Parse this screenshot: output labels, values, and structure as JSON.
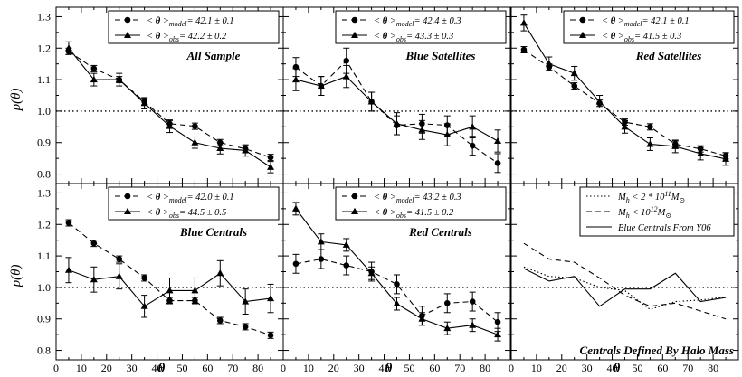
{
  "figure": {
    "xlabel": "θ",
    "ylabel": "p(θ)",
    "xticks": [
      "0",
      "10",
      "20",
      "30",
      "40",
      "50",
      "60",
      "70",
      "80"
    ],
    "yticks": [
      "0.8",
      "0.9",
      "1.0",
      "1.1",
      "1.2",
      "1.3"
    ]
  },
  "chart_data": [
    {
      "type": "line",
      "title": "All Sample",
      "xlim": [
        0,
        90
      ],
      "ylim": [
        0.77,
        1.33
      ],
      "reference_line": 1.0,
      "legend_position": "top-right",
      "x": [
        5,
        15,
        25,
        35,
        45,
        55,
        65,
        75,
        85
      ],
      "series": [
        {
          "name": "< θ >model = 42.1 ± 0.1",
          "label_sub": "model",
          "label_value": "= 42.1 ± 0.1",
          "style": "dashed",
          "marker": "circle",
          "values": [
            1.19,
            1.135,
            1.1,
            1.03,
            0.96,
            0.952,
            0.9,
            0.88,
            0.853
          ],
          "errors": [
            0.01,
            0.01,
            0.01,
            0.01,
            0.01,
            0.01,
            0.01,
            0.01,
            0.01
          ]
        },
        {
          "name": "< θ >obs = 42.2 ± 0.2",
          "label_sub": "obs",
          "label_value": "= 42.2 ± 0.2",
          "style": "solid",
          "marker": "triangle",
          "values": [
            1.2,
            1.1,
            1.1,
            1.025,
            0.952,
            0.9,
            0.882,
            0.875,
            0.822
          ],
          "errors": [
            0.02,
            0.02,
            0.02,
            0.018,
            0.02,
            0.018,
            0.018,
            0.018,
            0.018
          ]
        }
      ]
    },
    {
      "type": "line",
      "title": "Blue Satellites",
      "xlim": [
        0,
        90
      ],
      "ylim": [
        0.77,
        1.33
      ],
      "reference_line": 1.0,
      "legend_position": "top-right",
      "x": [
        5,
        15,
        25,
        35,
        45,
        55,
        65,
        75,
        85
      ],
      "series": [
        {
          "name": "< θ >model = 42.4 ± 0.3",
          "label_sub": "model",
          "label_value": "= 42.4 ± 0.3",
          "style": "dashed",
          "marker": "circle",
          "values": [
            1.14,
            1.08,
            1.16,
            1.03,
            0.955,
            0.96,
            0.955,
            0.89,
            0.835
          ],
          "errors": [
            0.03,
            0.03,
            0.04,
            0.03,
            0.03,
            0.03,
            0.03,
            0.03,
            0.03
          ]
        },
        {
          "name": "< θ >obs = 43.3 ± 0.3",
          "label_sub": "obs",
          "label_value": "= 43.3 ± 0.3",
          "style": "solid",
          "marker": "triangle",
          "values": [
            1.1,
            1.08,
            1.11,
            1.03,
            0.96,
            0.94,
            0.925,
            0.95,
            0.905
          ],
          "errors": [
            0.035,
            0.03,
            0.035,
            0.03,
            0.035,
            0.03,
            0.035,
            0.035,
            0.035
          ]
        }
      ]
    },
    {
      "type": "line",
      "title": "Red Satellites",
      "xlim": [
        0,
        90
      ],
      "ylim": [
        0.77,
        1.33
      ],
      "reference_line": 1.0,
      "legend_position": "top-right",
      "x": [
        5,
        15,
        25,
        35,
        45,
        55,
        65,
        75,
        85
      ],
      "series": [
        {
          "name": "< θ >model = 42.1 ± 0.1",
          "label_sub": "model",
          "label_value": "= 42.1 ± 0.1",
          "style": "dashed",
          "marker": "circle",
          "values": [
            1.195,
            1.14,
            1.08,
            1.025,
            0.965,
            0.95,
            0.895,
            0.88,
            0.858
          ],
          "errors": [
            0.01,
            0.01,
            0.01,
            0.01,
            0.01,
            0.01,
            0.01,
            0.01,
            0.01
          ]
        },
        {
          "name": "< θ >obs = 41.5 ± 0.3",
          "label_sub": "obs",
          "label_value": "= 41.5 ± 0.3",
          "style": "solid",
          "marker": "triangle",
          "values": [
            1.28,
            1.15,
            1.12,
            1.03,
            0.95,
            0.895,
            0.888,
            0.865,
            0.848
          ],
          "errors": [
            0.025,
            0.022,
            0.022,
            0.02,
            0.02,
            0.02,
            0.02,
            0.02,
            0.02
          ]
        }
      ]
    },
    {
      "type": "line",
      "title": "Blue Centrals",
      "xlim": [
        0,
        90
      ],
      "ylim": [
        0.77,
        1.33
      ],
      "reference_line": 1.0,
      "legend_position": "top-right",
      "x": [
        5,
        15,
        25,
        35,
        45,
        55,
        65,
        75,
        85
      ],
      "series": [
        {
          "name": "< θ >model = 42.0 ± 0.1",
          "label_sub": "model",
          "label_value": "= 42.0 ± 0.1",
          "style": "dashed",
          "marker": "circle",
          "values": [
            1.205,
            1.14,
            1.09,
            1.03,
            0.958,
            0.958,
            0.895,
            0.875,
            0.848
          ],
          "errors": [
            0.01,
            0.01,
            0.01,
            0.01,
            0.01,
            0.01,
            0.01,
            0.01,
            0.01
          ]
        },
        {
          "name": "< θ >obs = 44.5 ± 0.5",
          "label_sub": "obs",
          "label_value": "= 44.5 ± 0.5",
          "style": "solid",
          "marker": "triangle",
          "values": [
            1.055,
            1.025,
            1.035,
            0.94,
            0.99,
            0.99,
            1.045,
            0.955,
            0.965
          ],
          "errors": [
            0.04,
            0.04,
            0.04,
            0.035,
            0.04,
            0.04,
            0.04,
            0.04,
            0.045
          ]
        }
      ]
    },
    {
      "type": "line",
      "title": "Red Centrals",
      "xlim": [
        0,
        90
      ],
      "ylim": [
        0.77,
        1.33
      ],
      "reference_line": 1.0,
      "legend_position": "top-right",
      "x": [
        5,
        15,
        25,
        35,
        45,
        55,
        65,
        75,
        85
      ],
      "series": [
        {
          "name": "< θ >model = 43.2 ± 0.3",
          "label_sub": "model",
          "label_value": "= 43.2 ± 0.3",
          "style": "dashed",
          "marker": "circle",
          "values": [
            1.075,
            1.09,
            1.07,
            1.05,
            1.01,
            0.91,
            0.95,
            0.955,
            0.89
          ],
          "errors": [
            0.03,
            0.03,
            0.03,
            0.03,
            0.03,
            0.03,
            0.03,
            0.03,
            0.03
          ]
        },
        {
          "name": "< θ >obs = 41.5 ± 0.2",
          "label_sub": "obs",
          "label_value": "= 41.5 ± 0.2",
          "style": "solid",
          "marker": "triangle",
          "values": [
            1.25,
            1.145,
            1.135,
            1.045,
            0.948,
            0.9,
            0.87,
            0.88,
            0.85
          ],
          "errors": [
            0.02,
            0.025,
            0.02,
            0.02,
            0.02,
            0.02,
            0.02,
            0.02,
            0.02
          ]
        }
      ]
    },
    {
      "type": "line",
      "title": "Centrals Defined By Halo Mass",
      "xlim": [
        0,
        90
      ],
      "ylim": [
        0.77,
        1.33
      ],
      "reference_line": 1.0,
      "legend_position": "top-right",
      "x": [
        5,
        15,
        25,
        35,
        45,
        55,
        65,
        75,
        85
      ],
      "series": [
        {
          "name": "Mh < 2 * 10^11 M⊙",
          "label_html": "M<tspan font-size=\"8\" dy=\"3\">h</tspan><tspan dy=\"-3\"> &lt; 2 * 10</tspan><tspan font-size=\"8\" dy=\"-4\">11</tspan><tspan dy=\"4\">M</tspan><tspan font-size=\"8\" dy=\"3\">⊙</tspan>",
          "style": "dotted",
          "marker": "none",
          "values": [
            1.065,
            1.035,
            1.03,
            1.0,
            0.99,
            0.93,
            0.955,
            0.96,
            0.97
          ]
        },
        {
          "name": "Mh < 10^12 M⊙",
          "label_html": "M<tspan font-size=\"8\" dy=\"3\">h</tspan><tspan dy=\"-3\"> &lt; 10</tspan><tspan font-size=\"8\" dy=\"-4\">12</tspan><tspan dy=\"4\">M</tspan><tspan font-size=\"8\" dy=\"3\">⊙</tspan>",
          "style": "dashed",
          "marker": "none",
          "values": [
            1.14,
            1.09,
            1.08,
            1.03,
            0.975,
            0.94,
            0.95,
            0.925,
            0.9
          ]
        },
        {
          "name": "Blue Centrals From Y06",
          "label_html": "Blue Centrals From Y06",
          "style": "solid",
          "marker": "none",
          "values": [
            1.06,
            1.02,
            1.035,
            0.94,
            0.995,
            0.995,
            1.045,
            0.955,
            0.968
          ]
        }
      ]
    }
  ]
}
